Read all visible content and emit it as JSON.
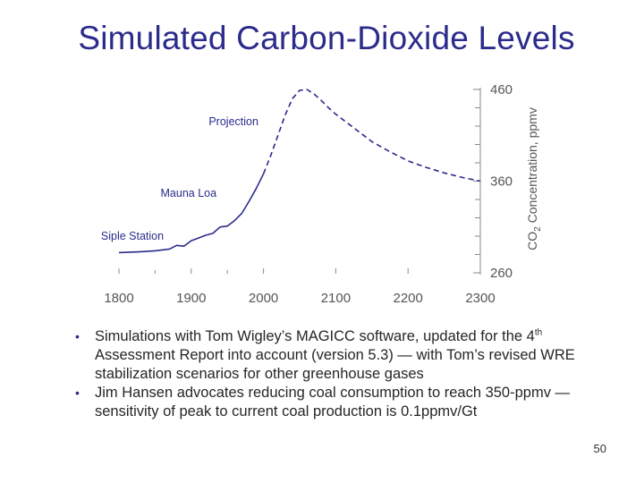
{
  "slide": {
    "title": "Simulated Carbon-Dioxide Levels",
    "page_number": "50"
  },
  "bullets": [
    {
      "pre": "Simulations with Tom Wigley’s MAGICC software, updated for the 4",
      "sup": "th",
      "post": " Assessment Report into account (version 5.3) —  with Tom’s revised WRE stabilization scenarios for other greenhouse gases"
    },
    {
      "pre": "Jim Hansen advocates reducing coal consumption to reach 350-ppmv — sensitivity of peak to current coal production is 0.1ppmv/Gt",
      "sup": "",
      "post": ""
    }
  ],
  "chart_data": {
    "type": "line",
    "title": "",
    "xlabel": "",
    "ylabel": "CO2 Concentration, ppmv",
    "ylabel_main": "CO",
    "ylabel_sub": "2",
    "ylabel_rest": " Concentration, ppmv",
    "xlim": [
      1800,
      2300
    ],
    "ylim": [
      260,
      460
    ],
    "x_ticks": [
      1800,
      1900,
      2000,
      2100,
      2200,
      2300
    ],
    "y_ticks": [
      260,
      360,
      460
    ],
    "y_axis_side": "right",
    "line_color": "#2b2b8c",
    "series": [
      {
        "style": "solid",
        "x": [
          1800,
          1830,
          1850,
          1860,
          1870,
          1880,
          1890,
          1900,
          1910,
          1920,
          1930,
          1940,
          1950,
          1960,
          1970,
          1980,
          1990,
          2000
        ],
        "y": [
          282,
          283,
          284,
          285,
          286,
          290,
          289,
          295,
          298,
          301,
          303,
          310,
          311,
          317,
          325,
          338,
          352,
          368
        ]
      },
      {
        "style": "dashed",
        "x": [
          2000,
          2010,
          2020,
          2030,
          2040,
          2050,
          2060,
          2070,
          2080,
          2090,
          2100,
          2125,
          2150,
          2175,
          2200,
          2225,
          2250,
          2275,
          2300
        ],
        "y": [
          368,
          388,
          410,
          432,
          450,
          459,
          460,
          455,
          448,
          440,
          433,
          418,
          403,
          392,
          382,
          375,
          369,
          364,
          360
        ]
      }
    ],
    "annotations": [
      {
        "text": "Projection",
        "x": 1993,
        "y": 425
      },
      {
        "text": "Mauna Loa",
        "x": 1935,
        "y": 347
      },
      {
        "text": "Siple Station",
        "x": 1862,
        "y": 300
      }
    ]
  }
}
